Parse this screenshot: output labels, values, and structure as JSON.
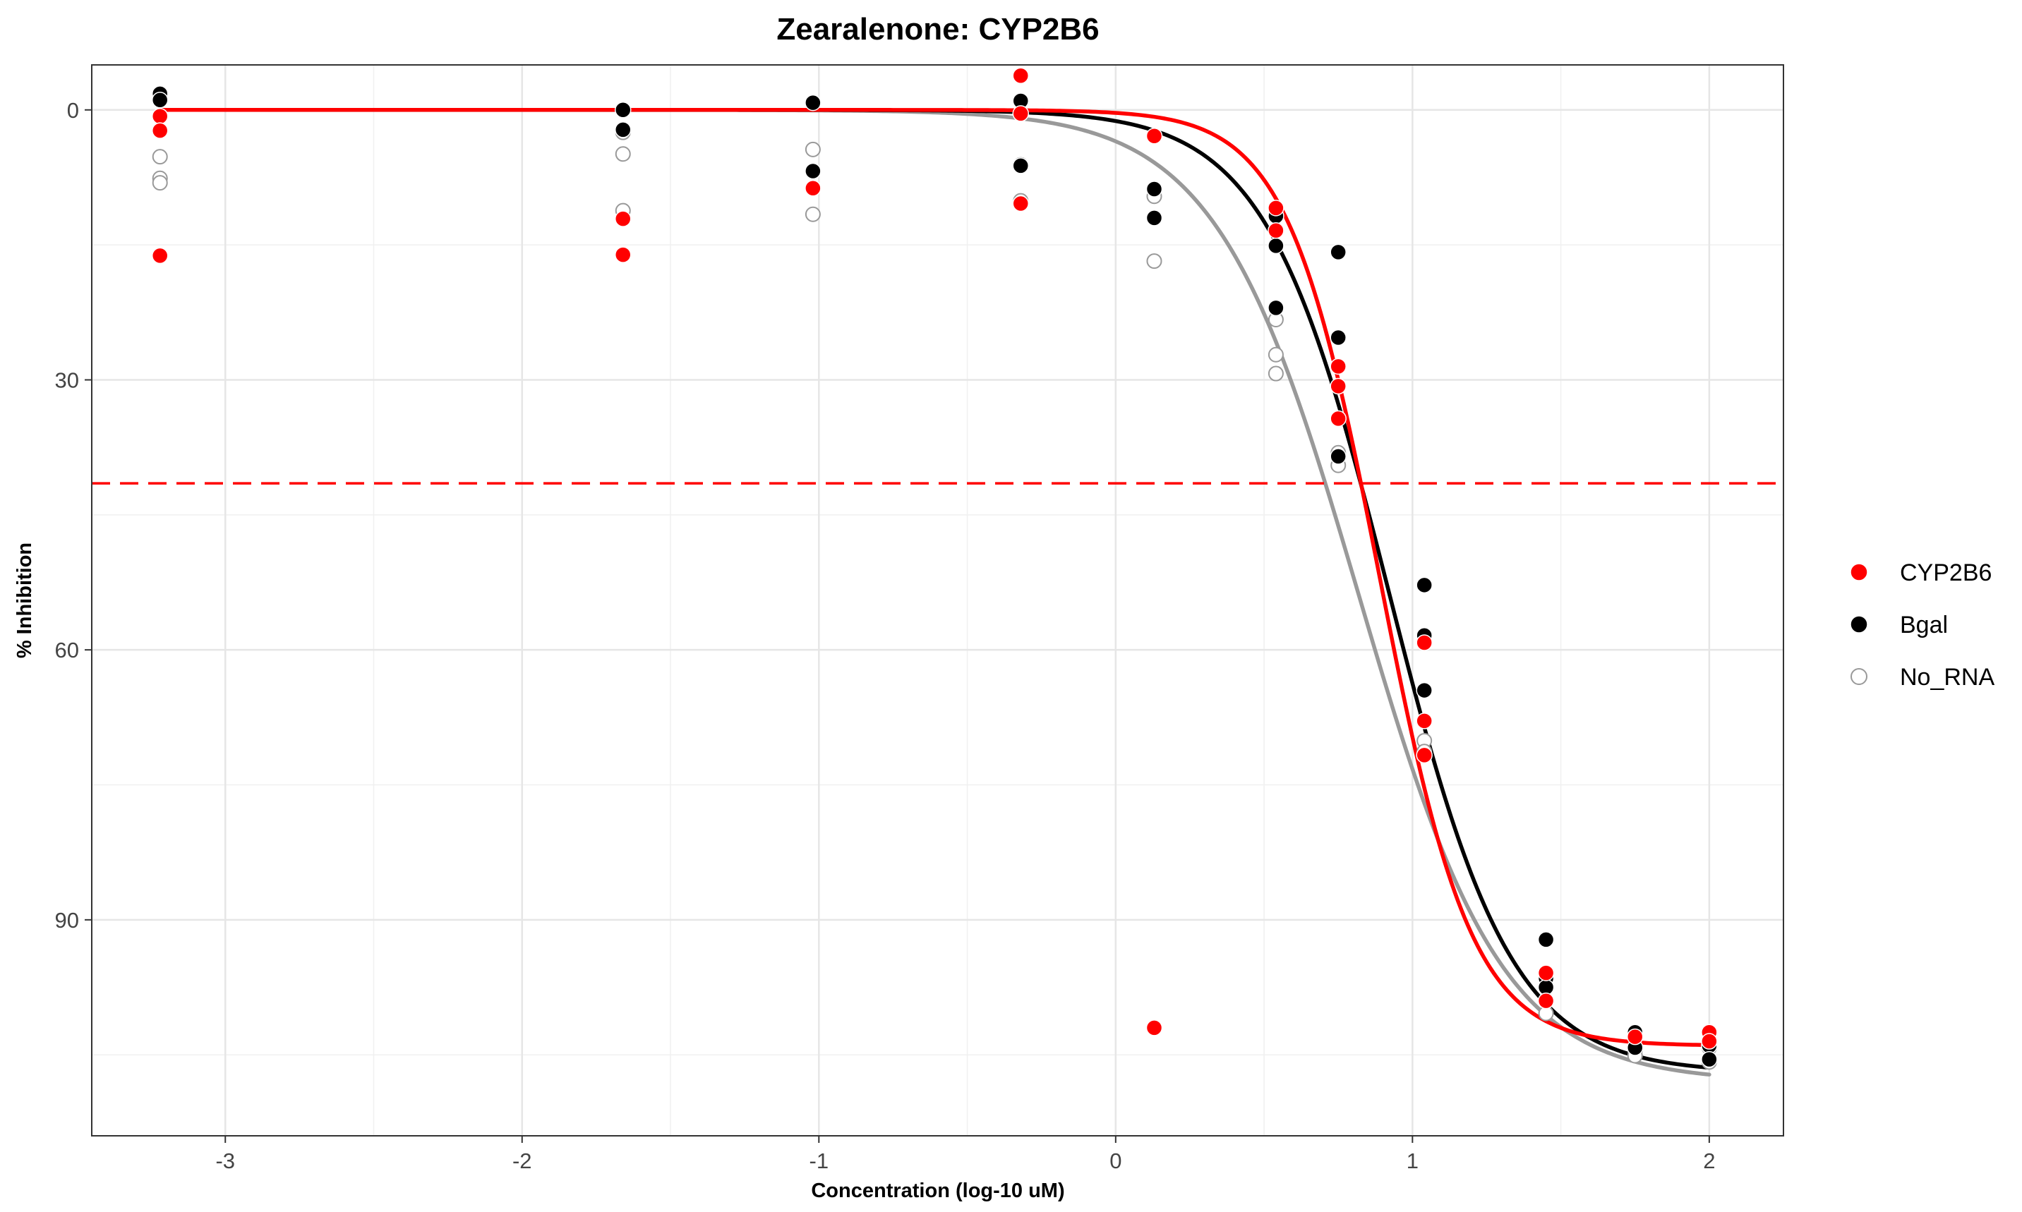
{
  "chart_data": {
    "type": "scatter",
    "title": "Zearalenone: CYP2B6",
    "xlabel": "Concentration (log-10 uM)",
    "ylabel": "% Inhibition",
    "xlim": [
      -3.45,
      2.25
    ],
    "ylim": [
      -5,
      114
    ],
    "y_reversed": true,
    "x_ticks": [
      -3,
      -2,
      -1,
      0,
      1,
      2
    ],
    "x_tick_labels": [
      "-3",
      "-2",
      "-1",
      "0",
      "1",
      "2"
    ],
    "y_ticks": [
      0,
      30,
      60,
      90
    ],
    "y_tick_labels": [
      "0",
      "30",
      "60",
      "90"
    ],
    "grid": true,
    "legend_position": "right",
    "reference_line": {
      "y": 41.5,
      "color": "#ff0000",
      "style": "dashed"
    },
    "series": [
      {
        "name": "CYP2B6",
        "color": "#ff0000",
        "marker": "filled-circle",
        "points": [
          [
            -3.22,
            0.7
          ],
          [
            -3.22,
            2.3
          ],
          [
            -3.22,
            16.2
          ],
          [
            -1.66,
            12.1
          ],
          [
            -1.66,
            16.1
          ],
          [
            -1.02,
            8.7
          ],
          [
            -0.32,
            -3.8
          ],
          [
            -0.32,
            0.4
          ],
          [
            -0.32,
            10.4
          ],
          [
            0.13,
            2.9
          ],
          [
            0.13,
            102
          ],
          [
            0.54,
            10.9
          ],
          [
            0.54,
            13.4
          ],
          [
            0.75,
            28.5
          ],
          [
            0.75,
            30.7
          ],
          [
            0.75,
            34.3
          ],
          [
            1.04,
            67.9
          ],
          [
            1.04,
            71.7
          ],
          [
            1.04,
            59.2
          ],
          [
            1.45,
            95.9
          ],
          [
            1.45,
            99
          ],
          [
            1.75,
            103
          ],
          [
            2.0,
            102.5
          ],
          [
            2.0,
            103.5
          ]
        ],
        "curve": {
          "bottom": 0,
          "top": 104,
          "ic50_log": 0.89,
          "hill": 2.8
        }
      },
      {
        "name": "Bgal",
        "color": "#000000",
        "marker": "filled-circle",
        "points": [
          [
            -3.22,
            -1.8
          ],
          [
            -3.22,
            -1.1
          ],
          [
            -1.66,
            0
          ],
          [
            -1.66,
            2.2
          ],
          [
            -1.02,
            -0.8
          ],
          [
            -1.02,
            6.8
          ],
          [
            -0.32,
            -1
          ],
          [
            -0.32,
            6.2
          ],
          [
            0.13,
            8.8
          ],
          [
            0.13,
            12
          ],
          [
            0.54,
            11.8
          ],
          [
            0.54,
            15.1
          ],
          [
            0.54,
            22
          ],
          [
            0.75,
            15.8
          ],
          [
            0.75,
            25.3
          ],
          [
            0.75,
            38.5
          ],
          [
            1.04,
            52.8
          ],
          [
            1.04,
            58.4
          ],
          [
            1.04,
            64.5
          ],
          [
            1.45,
            92.2
          ],
          [
            1.45,
            96.5
          ],
          [
            1.45,
            97.5
          ],
          [
            1.75,
            102.5
          ],
          [
            1.75,
            104.2
          ],
          [
            2.0,
            104
          ],
          [
            2.0,
            105.5
          ]
        ],
        "curve": {
          "bottom": 0,
          "top": 107,
          "ic50_log": 0.92,
          "hill": 2.1
        }
      },
      {
        "name": "No_RNA",
        "color": "#999999",
        "marker": "open-circle",
        "points": [
          [
            -3.22,
            5.2
          ],
          [
            -3.22,
            7.6
          ],
          [
            -3.22,
            8.1
          ],
          [
            -1.66,
            2.5
          ],
          [
            -1.66,
            4.9
          ],
          [
            -1.66,
            11.2
          ],
          [
            -1.02,
            4.4
          ],
          [
            -1.02,
            11.6
          ],
          [
            -0.32,
            6.1
          ],
          [
            -0.32,
            10.1
          ],
          [
            0.13,
            9.6
          ],
          [
            0.13,
            16.8
          ],
          [
            0.54,
            23.3
          ],
          [
            0.54,
            27.2
          ],
          [
            0.54,
            29.3
          ],
          [
            0.75,
            38.1
          ],
          [
            0.75,
            39.5
          ],
          [
            1.04,
            70.1
          ],
          [
            1.04,
            71.3
          ],
          [
            1.45,
            96.4
          ],
          [
            1.45,
            100.4
          ],
          [
            1.75,
            104.5
          ],
          [
            1.75,
            105.1
          ],
          [
            2.0,
            104.2
          ],
          [
            2.0,
            105.8
          ]
        ],
        "curve": {
          "bottom": 0,
          "top": 108,
          "ic50_log": 0.82,
          "hill": 1.8
        }
      }
    ]
  }
}
